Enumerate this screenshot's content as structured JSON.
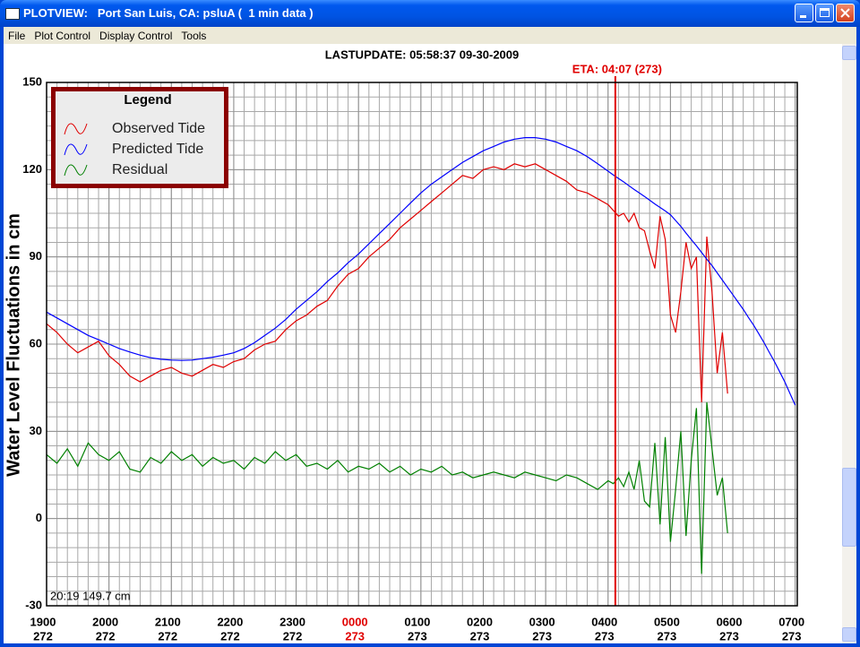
{
  "window": {
    "title": "PLOTVIEW:   Port San Luis, CA: psluA (  1 min data )",
    "menu": [
      "File",
      "Plot Control",
      "Display Control",
      "Tools"
    ]
  },
  "chart_data": {
    "type": "line",
    "title": "LASTUPDATE: 05:58:37  09-30-2009",
    "ylabel": "Water Level Fluctuations in cm",
    "cursor_readout": "20:19 149.7 cm",
    "eta": {
      "label": "ETA: 04:07 (273)",
      "x": 547,
      "color": "#e00000"
    },
    "legend": {
      "title": "Legend",
      "position": "upper left"
    },
    "xlim": [
      0,
      722
    ],
    "ylim": [
      -30,
      150
    ],
    "yticks": [
      -30,
      0,
      30,
      60,
      90,
      120,
      150
    ],
    "xticks": [
      {
        "value": 0,
        "label": "1900",
        "day": "272"
      },
      {
        "value": 60,
        "label": "2000",
        "day": "272"
      },
      {
        "value": 120,
        "label": "2100",
        "day": "272"
      },
      {
        "value": 180,
        "label": "2200",
        "day": "272"
      },
      {
        "value": 240,
        "label": "2300",
        "day": "272"
      },
      {
        "value": 300,
        "label": "0000",
        "day": "273",
        "color": "#e00000"
      },
      {
        "value": 360,
        "label": "0100",
        "day": "273"
      },
      {
        "value": 420,
        "label": "0200",
        "day": "273"
      },
      {
        "value": 480,
        "label": "0300",
        "day": "273"
      },
      {
        "value": 540,
        "label": "0400",
        "day": "273"
      },
      {
        "value": 600,
        "label": "0500",
        "day": "273"
      },
      {
        "value": 660,
        "label": "0600",
        "day": "273"
      },
      {
        "value": 720,
        "label": "0700",
        "day": "273"
      }
    ],
    "grid": true,
    "x_minor_step": 10,
    "y_minor_step": 5,
    "x": [
      0,
      10,
      20,
      30,
      40,
      50,
      60,
      70,
      80,
      90,
      100,
      110,
      120,
      130,
      140,
      150,
      160,
      170,
      180,
      190,
      200,
      210,
      220,
      230,
      240,
      250,
      260,
      270,
      280,
      290,
      300,
      310,
      320,
      330,
      340,
      350,
      360,
      370,
      380,
      390,
      400,
      410,
      420,
      430,
      440,
      450,
      460,
      470,
      480,
      490,
      500,
      510,
      520,
      530,
      540,
      545,
      550,
      555,
      560,
      565,
      570,
      575,
      580,
      585,
      590,
      595,
      600,
      605,
      610,
      615,
      620,
      625,
      630,
      635,
      640,
      645,
      650,
      655,
      660,
      665,
      670,
      675,
      680,
      685,
      690,
      695,
      700,
      705,
      710,
      715,
      720
    ],
    "series": [
      {
        "name": "Observed Tide",
        "color": "#e00000",
        "values": [
          67,
          64,
          60,
          57,
          59,
          61,
          56,
          53,
          49,
          47,
          49,
          51,
          52,
          50,
          49,
          51,
          53,
          52,
          54,
          55,
          58,
          60,
          61,
          65,
          68,
          70,
          73,
          75,
          80,
          84,
          86,
          90,
          93,
          96,
          100,
          103,
          106,
          109,
          112,
          115,
          118,
          117,
          120,
          121,
          120,
          122,
          121,
          122,
          120,
          118,
          116,
          113,
          112,
          110,
          108,
          106,
          104,
          105,
          102,
          105,
          100,
          99,
          92,
          86,
          104,
          96,
          70,
          64,
          78,
          95,
          86,
          90,
          40,
          97,
          78,
          50,
          64,
          43,
          null,
          null,
          null,
          null,
          null,
          null,
          null,
          null,
          null,
          null,
          null,
          null,
          null
        ]
      },
      {
        "name": "Predicted Tide",
        "color": "#0000ff",
        "values": [
          71,
          69,
          67,
          65,
          63,
          61.5,
          60,
          58.5,
          57.3,
          56.2,
          55.3,
          54.8,
          54.5,
          54.4,
          54.5,
          55,
          55.5,
          56.2,
          57,
          58.5,
          60.5,
          63,
          65.5,
          68.5,
          72,
          75,
          78,
          81.5,
          84.5,
          88,
          91,
          94.5,
          98,
          101.5,
          105,
          108.5,
          112,
          115,
          117.5,
          120,
          122.5,
          124.5,
          126.5,
          128,
          129.5,
          130.5,
          131,
          131,
          130.5,
          129.5,
          128,
          126.5,
          124.5,
          122,
          119.5,
          118.2,
          117,
          115.8,
          114.5,
          113.2,
          112,
          110.8,
          109.5,
          108.2,
          107,
          105.8,
          104.5,
          102.5,
          100.5,
          98.2,
          96,
          93.8,
          91.5,
          89.2,
          87,
          84.5,
          82,
          79.5,
          77,
          74.5,
          72,
          69.2,
          66.5,
          63.5,
          60.5,
          57.2,
          54,
          50.5,
          47,
          43,
          39
        ]
      },
      {
        "name": "Residual",
        "color": "#008000",
        "values": [
          22,
          19,
          24,
          18,
          26,
          22,
          20,
          23,
          17,
          16,
          21,
          19,
          23,
          20,
          22,
          18,
          21,
          19,
          20,
          17,
          21,
          19,
          23,
          20,
          22,
          18,
          19,
          17,
          20,
          16,
          18,
          17,
          19,
          16,
          18,
          15,
          17,
          16,
          18,
          15,
          16,
          14,
          15,
          16,
          15,
          14,
          16,
          15,
          14,
          13,
          15,
          14,
          12,
          10,
          13,
          12,
          14,
          11,
          16,
          10,
          20,
          6,
          4,
          26,
          -2,
          28,
          -8,
          10,
          30,
          -6,
          20,
          38,
          -19,
          40,
          24,
          8,
          14,
          -5,
          null,
          null,
          null,
          null,
          null,
          null,
          null,
          null,
          null,
          null,
          null,
          null,
          null
        ]
      }
    ]
  }
}
